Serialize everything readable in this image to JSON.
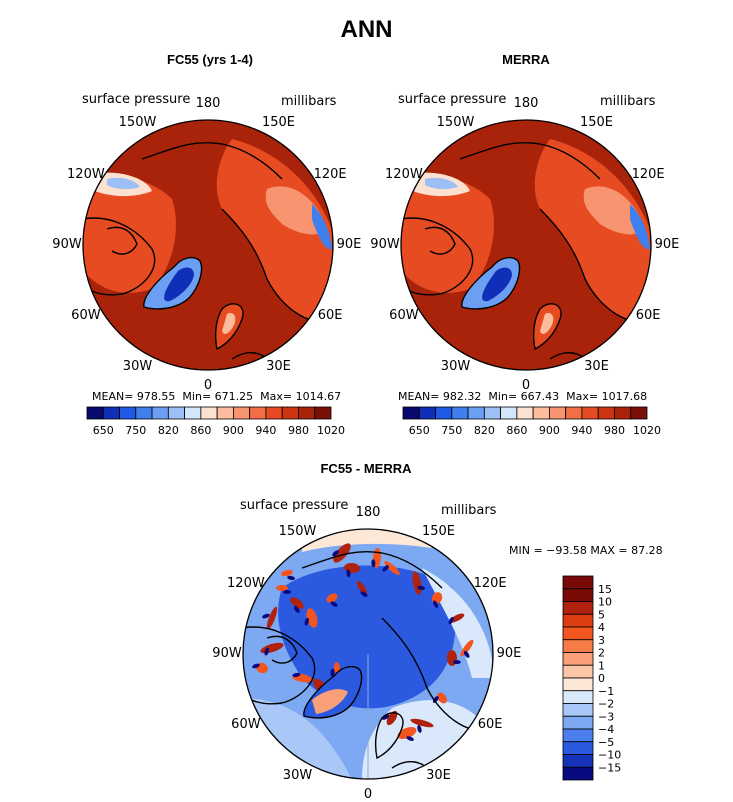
{
  "title": "ANN",
  "panels": [
    {
      "id": "fc55",
      "title": "FC55 (yrs 1-4)",
      "variable": "surface pressure",
      "units": "millibars",
      "stats": {
        "mean_label": "MEAN=",
        "mean": "978.55",
        "min_label": "Min=",
        "min": "671.25",
        "max_label": "Max=",
        "max": "1014.67"
      },
      "colorbar_ticks": [
        "650",
        "750",
        "820",
        "860",
        "900",
        "940",
        "980",
        "1020"
      ]
    },
    {
      "id": "merra",
      "title": "MERRA",
      "variable": "surface pressure",
      "units": "millibars",
      "stats": {
        "mean_label": "MEAN=",
        "mean": "982.32",
        "min_label": "Min=",
        "min": "667.43",
        "max_label": "Max=",
        "max": "1017.68"
      },
      "colorbar_ticks": [
        "650",
        "750",
        "820",
        "860",
        "900",
        "940",
        "980",
        "1020"
      ]
    }
  ],
  "difference": {
    "title": "FC55 - MERRA",
    "variable": "surface pressure",
    "units": "millibars",
    "minmax": "MIN = −93.58 MAX =   87.28",
    "colorbar_ticks": [
      "15",
      "10",
      "5",
      "4",
      "3",
      "2",
      "1",
      "0",
      "−1",
      "−2",
      "−3",
      "−4",
      "−5",
      "−10",
      "−15"
    ]
  },
  "longitude_labels": {
    "top": "180",
    "upper_left": "150W",
    "upper_right": "150E",
    "left_upper": "120W",
    "right_upper": "120E",
    "left": "90W",
    "right": "90E",
    "left_lower": "60W",
    "right_lower": "60E",
    "lower_left": "30W",
    "lower_right": "30E",
    "bottom": "0"
  },
  "colors": {
    "full_field_scale": [
      "#08086e",
      "#0f2fb8",
      "#1f5ae6",
      "#3f7fee",
      "#6a9ff2",
      "#9cc0f6",
      "#d4e6fb",
      "#fde1d0",
      "#fbbd9e",
      "#f89470",
      "#f36d45",
      "#e74b22",
      "#cd3512",
      "#a9230a",
      "#7a1005"
    ],
    "diff_scale": [
      "#7a0a06",
      "#b0220e",
      "#dd3d12",
      "#f2551e",
      "#f67b47",
      "#f9a07a",
      "#fcc7a8",
      "#fde7d7",
      "#d9e8fb",
      "#a9c8f7",
      "#7da8f2",
      "#4b7fee",
      "#2b5ae0",
      "#1532b8",
      "#0a0a80"
    ],
    "coast": "#000000"
  }
}
